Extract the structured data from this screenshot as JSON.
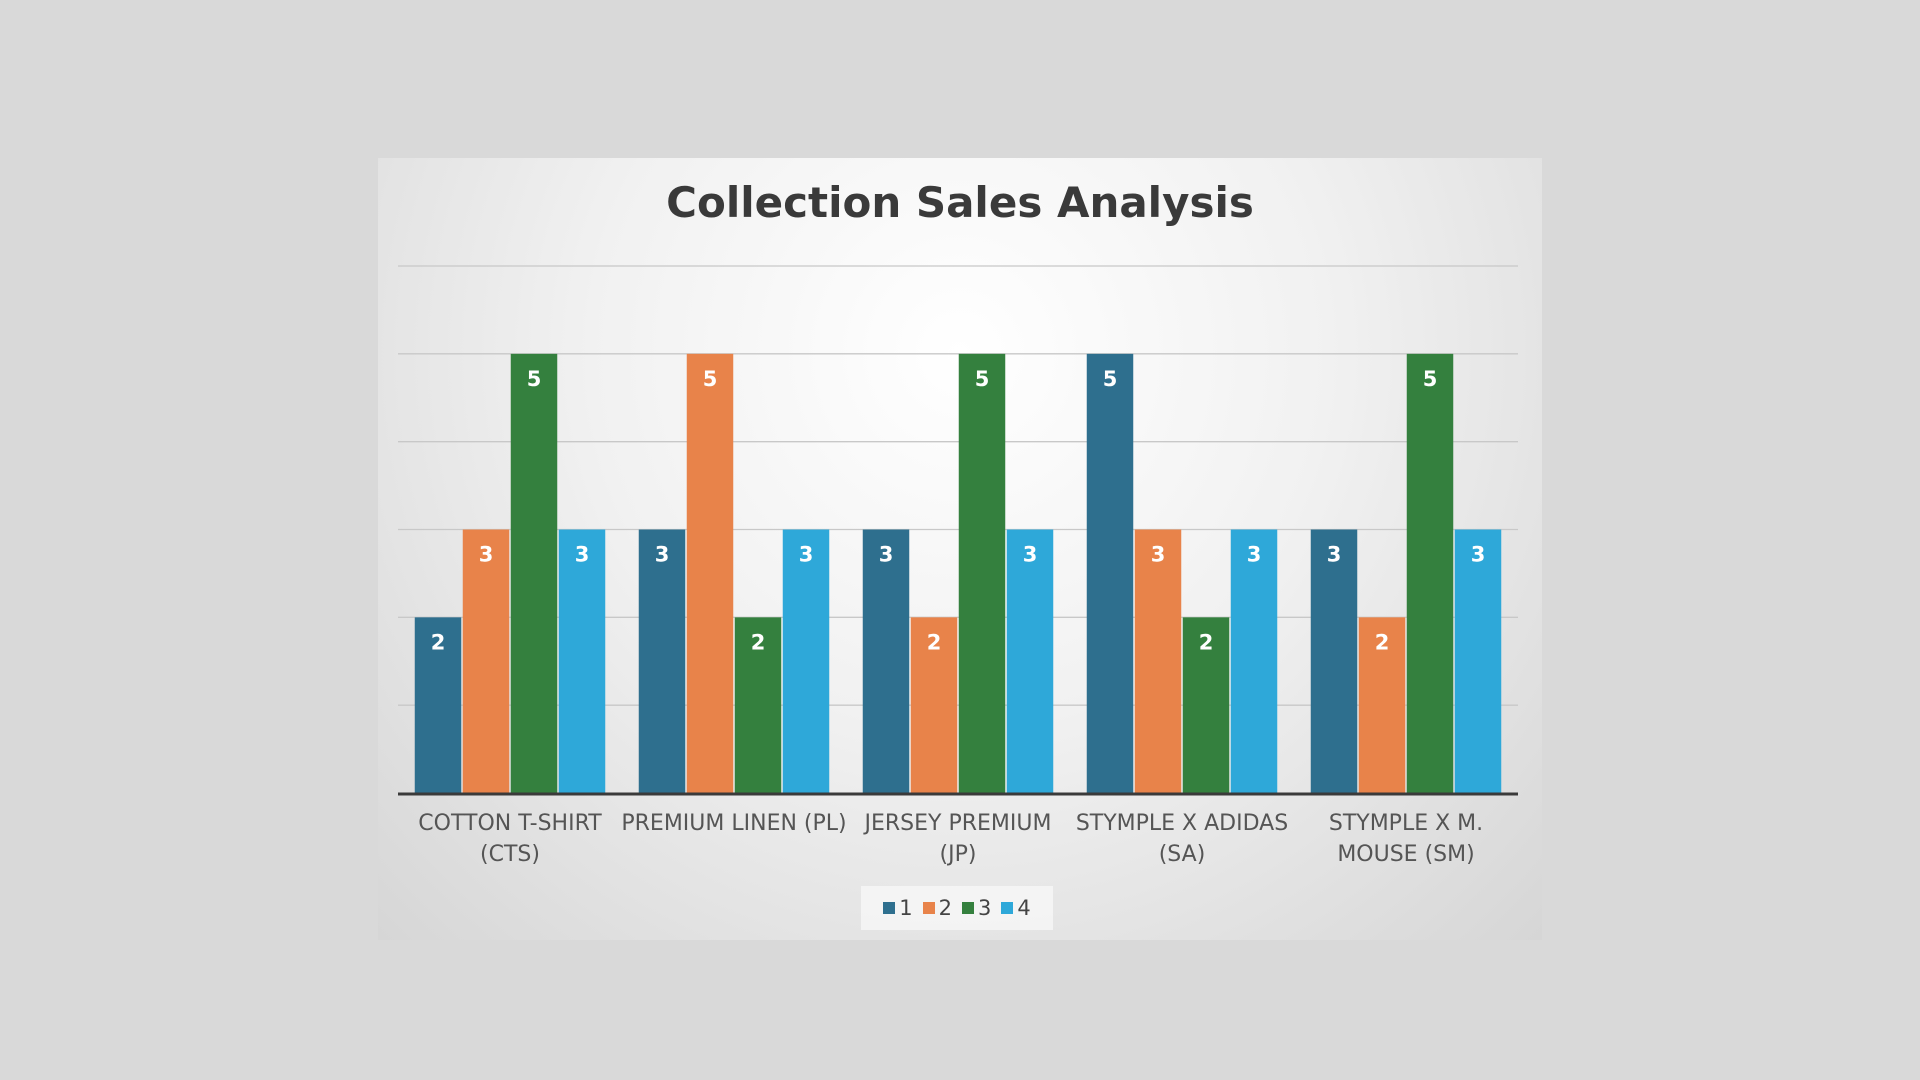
{
  "chart_data": {
    "type": "bar",
    "title": "Collection Sales Analysis",
    "xlabel": "",
    "ylabel": "",
    "categories": [
      [
        "COTTON T-SHIRT",
        "(CTS)"
      ],
      [
        "PREMIUM LINEN (PL)"
      ],
      [
        "JERSEY PREMIUM",
        "(JP)"
      ],
      [
        "STYMPLE X ADIDAS",
        "(SA)"
      ],
      [
        "STYMPLE X M.",
        "MOUSE (SM)"
      ]
    ],
    "series": [
      {
        "name": "1",
        "color": "#2e6f8e",
        "values": [
          2,
          3,
          3,
          5,
          3
        ]
      },
      {
        "name": "2",
        "color": "#e8834a",
        "values": [
          3,
          5,
          2,
          3,
          2
        ]
      },
      {
        "name": "3",
        "color": "#34803e",
        "values": [
          5,
          2,
          5,
          2,
          5
        ]
      },
      {
        "name": "4",
        "color": "#2ea8d9",
        "values": [
          3,
          3,
          3,
          3,
          3
        ]
      }
    ],
    "ylim": [
      0,
      6
    ],
    "grid": true,
    "data_labels": true,
    "legend_position": "bottom"
  }
}
